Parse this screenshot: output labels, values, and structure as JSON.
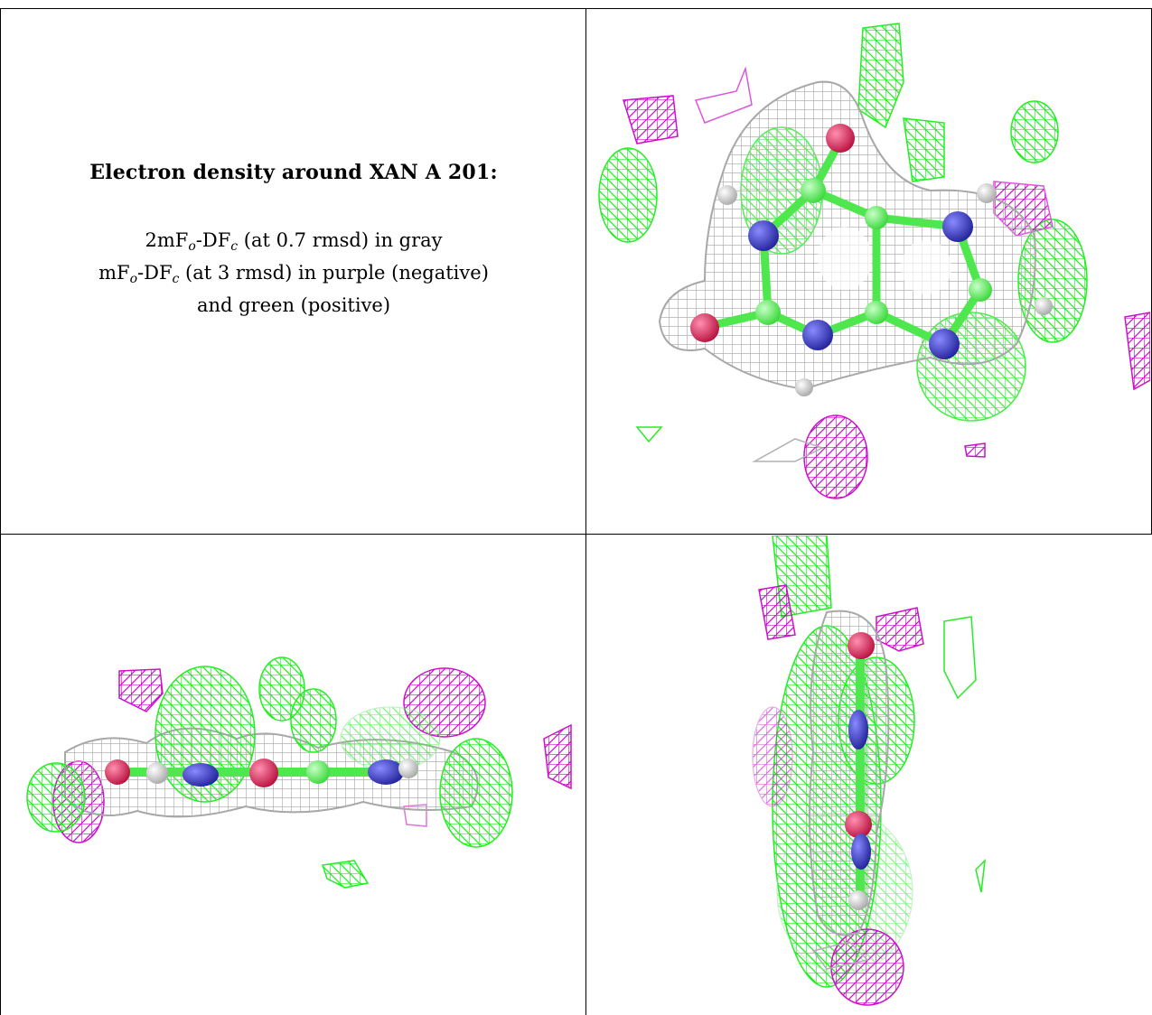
{
  "caption": {
    "title": "Electron density around XAN A 201:",
    "line1": {
      "pre": "2mF",
      "sub1": "o",
      "mid": "-DF",
      "sub2": "c",
      "post": " (at 0.7 rmsd) in gray"
    },
    "line2": {
      "pre": "mF",
      "sub1": "o",
      "mid": "-DF",
      "sub2": "c",
      "post": " (at 3 rmsd) in purple (negative)"
    },
    "line3": "and green (positive)"
  },
  "colors": {
    "map_2fofc": "#b9b9b9",
    "map_positive": "#22ee22",
    "map_negative": "#cc11cc",
    "carbon": "#5cf25c",
    "nitrogen": "#3030c8",
    "oxygen": "#e0205a",
    "hydrogen": "#f2f2f2",
    "grid_line": "#000000"
  },
  "panels": [
    {
      "id": "caption-panel"
    },
    {
      "id": "view-top-face"
    },
    {
      "id": "view-edge-on"
    },
    {
      "id": "view-side"
    }
  ]
}
